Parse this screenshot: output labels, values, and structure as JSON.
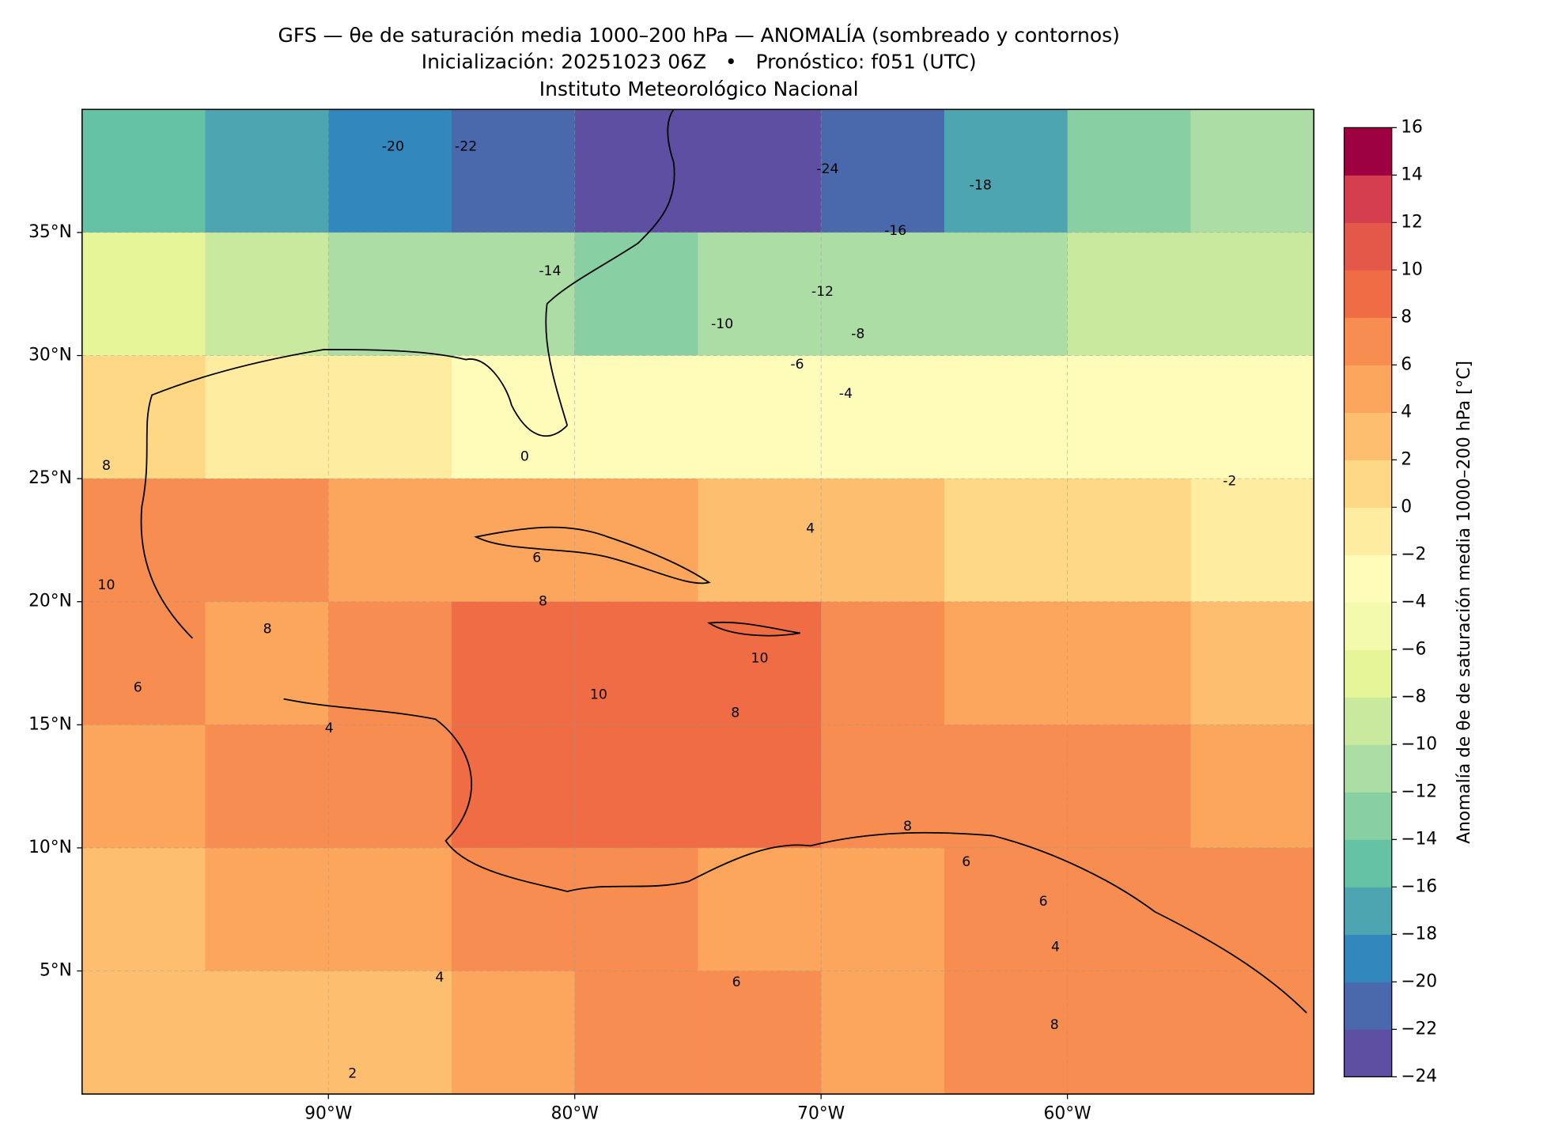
{
  "chart_data": {
    "type": "heatmap",
    "title": "GFS — θe de saturación media 1000–200 hPa — ANOMALÍA (sombreado y contornos)",
    "subtitle": "Inicialización: 20251023 06Z   •   Pronóstico: f051 (UTC)",
    "source": "Instituto Meteorológico Nacional",
    "xlim": [
      -100,
      -50
    ],
    "ylim": [
      0,
      40
    ],
    "xticks": [
      {
        "value": -90,
        "label": "90°W"
      },
      {
        "value": -80,
        "label": "80°W"
      },
      {
        "value": -70,
        "label": "70°W"
      },
      {
        "value": -60,
        "label": "60°W"
      }
    ],
    "yticks": [
      {
        "value": 5,
        "label": "5°N"
      },
      {
        "value": 10,
        "label": "10°N"
      },
      {
        "value": 15,
        "label": "15°N"
      },
      {
        "value": 20,
        "label": "20°N"
      },
      {
        "value": 25,
        "label": "25°N"
      },
      {
        "value": 30,
        "label": "30°N"
      },
      {
        "value": 35,
        "label": "35°N"
      }
    ],
    "grid": true,
    "field": {
      "lat": [
        37.5,
        32.5,
        27.5,
        22.5,
        17.5,
        12.5,
        7.5,
        2.5
      ],
      "lon": [
        -97.5,
        -92.5,
        -87.5,
        -82.5,
        -77.5,
        -72.5,
        -67.5,
        -62.5,
        -57.5,
        -52.5
      ],
      "values": [
        [
          -15,
          -17,
          -19,
          -21,
          -23,
          -23,
          -21,
          -18,
          -14,
          -12
        ],
        [
          -8,
          -9,
          -11,
          -12,
          -13,
          -12,
          -12,
          -11,
          -10,
          -9
        ],
        [
          1,
          -1,
          -2,
          -3,
          -3,
          -3,
          -3,
          -3,
          -3,
          -3
        ],
        [
          7,
          7,
          5,
          5,
          4,
          3,
          2,
          1,
          0,
          -1
        ],
        [
          7,
          5,
          6,
          8,
          9,
          8,
          6,
          5,
          4,
          3
        ],
        [
          5,
          6,
          6,
          8,
          9,
          8,
          6,
          6,
          6,
          5
        ],
        [
          3,
          4,
          5,
          7,
          6,
          5,
          5,
          6,
          7,
          6
        ],
        [
          3,
          3,
          3,
          5,
          6,
          6,
          5,
          7,
          7,
          6
        ]
      ]
    },
    "colorbar": {
      "label": "Anomalía de θe de saturación media 1000–200 hPa [°C]",
      "lim": [
        -24,
        16
      ],
      "ticks": [
        {
          "value": -24,
          "label": "−24"
        },
        {
          "value": -22,
          "label": "−22"
        },
        {
          "value": -20,
          "label": "−20"
        },
        {
          "value": -18,
          "label": "−18"
        },
        {
          "value": -16,
          "label": "−16"
        },
        {
          "value": -14,
          "label": "−14"
        },
        {
          "value": -12,
          "label": "−12"
        },
        {
          "value": -10,
          "label": "−10"
        },
        {
          "value": -8,
          "label": "−8"
        },
        {
          "value": -6,
          "label": "−6"
        },
        {
          "value": -4,
          "label": "−4"
        },
        {
          "value": -2,
          "label": "−2"
        },
        0,
        2,
        4,
        6,
        8,
        10,
        12,
        14,
        16
      ],
      "colors": [
        "#5e4fa2",
        "#4a69ad",
        "#3288bd",
        "#4da5b1",
        "#66c2a5",
        "#88cfa4",
        "#abdda4",
        "#c9e99e",
        "#e6f598",
        "#f3faac",
        "#fffcba",
        "#feeda1",
        "#fed884",
        "#fdbf6f",
        "#fca55d",
        "#f88d52",
        "#f06c44",
        "#e4584a",
        "#d53e4f",
        "#9e0142"
      ]
    },
    "contour_labels": [
      -20,
      -22,
      -24,
      -18,
      -16,
      -14,
      -12,
      -10,
      -8,
      -6,
      -4,
      0,
      -2,
      4,
      6,
      8,
      8,
      10,
      10,
      8,
      6,
      4,
      8,
      6,
      4,
      6,
      8,
      4,
      2,
      8,
      10,
      6
    ]
  }
}
